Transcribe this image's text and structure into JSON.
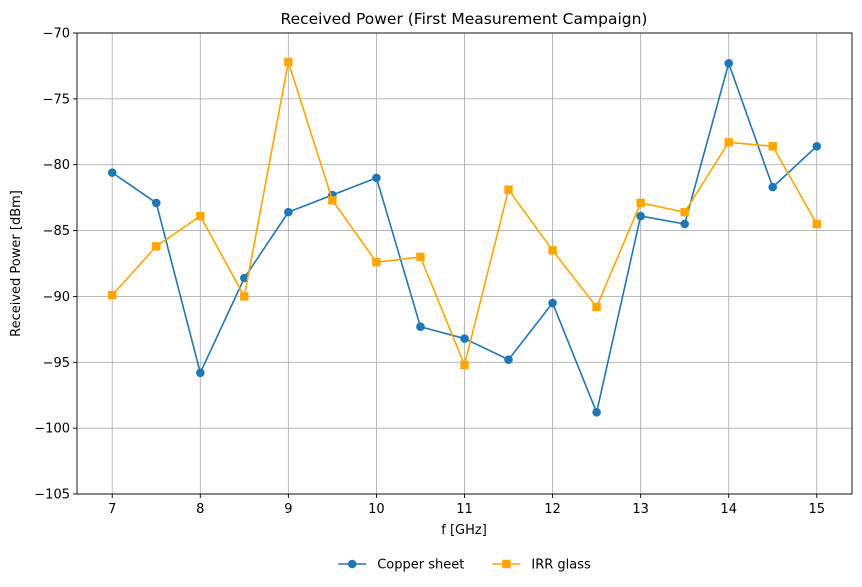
{
  "chart_data": {
    "type": "line",
    "title": "Received Power (First Measurement Campaign)",
    "xlabel": "f [GHz]",
    "ylabel": "Received Power [dBm]",
    "xlim": [
      6.6,
      15.4
    ],
    "ylim": [
      -105,
      -70
    ],
    "xticks": [
      7,
      8,
      9,
      10,
      11,
      12,
      13,
      14,
      15
    ],
    "yticks": [
      -105,
      -100,
      -95,
      -90,
      -85,
      -80,
      -75,
      -70
    ],
    "grid": true,
    "legend_position": "bottom-center",
    "x": [
      7,
      7.5,
      8,
      8.5,
      9,
      9.5,
      10,
      10.5,
      11,
      11.5,
      12,
      12.5,
      13,
      13.5,
      14,
      14.5,
      15
    ],
    "series": [
      {
        "name": "Copper sheet",
        "color": "#1f77b4",
        "marker": "circle",
        "values": [
          -80.6,
          -82.9,
          -95.8,
          -88.6,
          -83.6,
          -82.3,
          -81.0,
          -92.3,
          -93.2,
          -94.8,
          -90.5,
          -98.8,
          -83.9,
          -84.5,
          -72.3,
          -81.7,
          -78.6
        ]
      },
      {
        "name": "IRR glass",
        "color": "#ffa500",
        "marker": "square",
        "values": [
          -89.9,
          -86.2,
          -83.9,
          -90.0,
          -72.2,
          -82.7,
          -87.4,
          -87.0,
          -95.2,
          -81.9,
          -86.5,
          -90.8,
          -82.9,
          -83.6,
          -78.3,
          -78.6,
          -84.5
        ]
      }
    ]
  }
}
